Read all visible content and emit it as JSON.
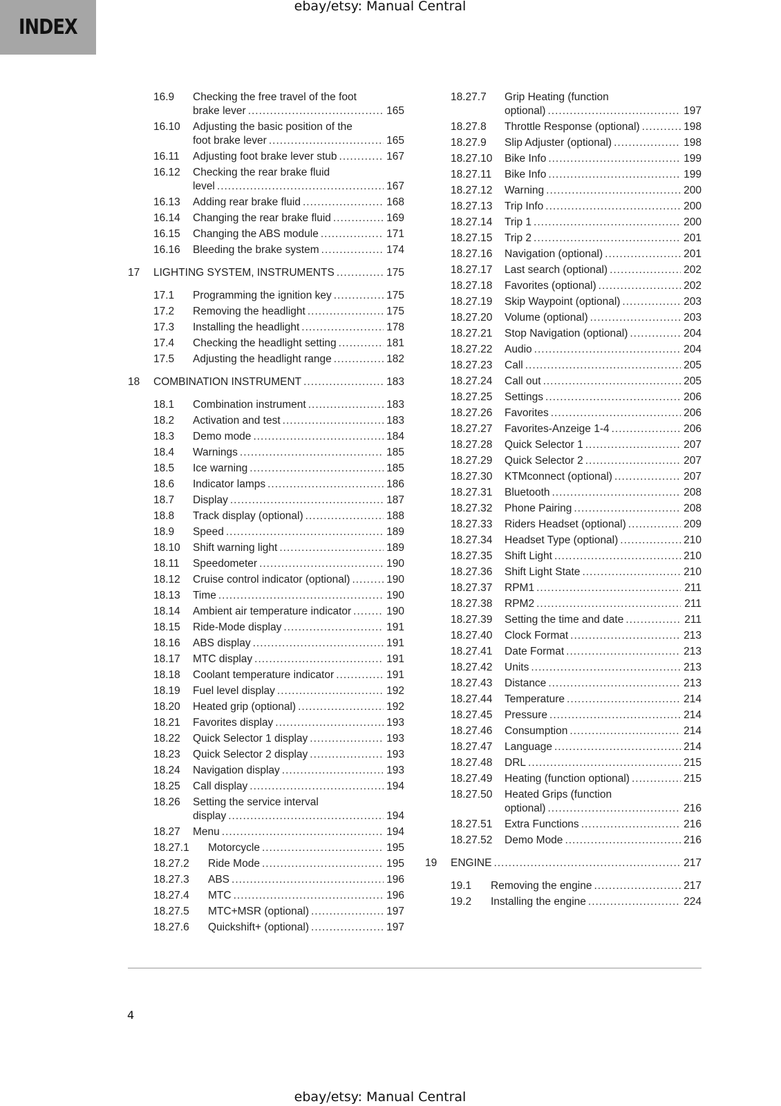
{
  "header": {
    "index_label": "INDEX",
    "watermark_top": "ebay/etsy: Manual Central"
  },
  "footer": {
    "page_number": "4",
    "watermark_bottom": "ebay/etsy: Manual Central"
  },
  "columns": [
    {
      "entries": [
        {
          "level": "sub",
          "num": "16.9",
          "title": "Checking the free travel of the foot",
          "title_cont": "brake lever",
          "page": "165"
        },
        {
          "level": "sub",
          "num": "16.10",
          "title": "Adjusting the basic position of the",
          "title_cont": "foot brake lever",
          "page": "165"
        },
        {
          "level": "sub",
          "num": "16.11",
          "title": "Adjusting foot brake lever stub",
          "page": "167"
        },
        {
          "level": "sub",
          "num": "16.12",
          "title": "Checking the rear brake fluid",
          "title_cont": "level",
          "page": "167"
        },
        {
          "level": "sub",
          "num": "16.13",
          "title": "Adding rear brake fluid",
          "page": "168"
        },
        {
          "level": "sub",
          "num": "16.14",
          "title": "Changing the rear brake fluid",
          "page": "169"
        },
        {
          "level": "sub",
          "num": "16.15",
          "title": "Changing the ABS module",
          "page": "171"
        },
        {
          "level": "sub",
          "num": "16.16",
          "title": "Bleeding the brake system",
          "page": "174"
        },
        {
          "level": "section",
          "num": "17",
          "title": "LIGHTING SYSTEM, INSTRUMENTS",
          "page": "175"
        },
        {
          "level": "sub",
          "num": "17.1",
          "title": "Programming the ignition key",
          "page": "175"
        },
        {
          "level": "sub",
          "num": "17.2",
          "title": "Removing the headlight",
          "page": "175"
        },
        {
          "level": "sub",
          "num": "17.3",
          "title": "Installing the headlight",
          "page": "178"
        },
        {
          "level": "sub",
          "num": "17.4",
          "title": "Checking the headlight setting",
          "page": "181"
        },
        {
          "level": "sub",
          "num": "17.5",
          "title": "Adjusting the headlight range",
          "page": "182"
        },
        {
          "level": "section",
          "num": "18",
          "title": "COMBINATION INSTRUMENT",
          "page": "183"
        },
        {
          "level": "sub",
          "num": "18.1",
          "title": "Combination instrument",
          "page": "183"
        },
        {
          "level": "sub",
          "num": "18.2",
          "title": "Activation and test",
          "page": "183"
        },
        {
          "level": "sub",
          "num": "18.3",
          "title": "Demo mode",
          "page": "184"
        },
        {
          "level": "sub",
          "num": "18.4",
          "title": "Warnings",
          "page": "185"
        },
        {
          "level": "sub",
          "num": "18.5",
          "title": "Ice warning",
          "page": "185"
        },
        {
          "level": "sub",
          "num": "18.6",
          "title": "Indicator lamps",
          "page": "186"
        },
        {
          "level": "sub",
          "num": "18.7",
          "title": "Display",
          "page": "187"
        },
        {
          "level": "sub",
          "num": "18.8",
          "title": "Track display (optional)",
          "page": "188"
        },
        {
          "level": "sub",
          "num": "18.9",
          "title": "Speed",
          "page": "189"
        },
        {
          "level": "sub",
          "num": "18.10",
          "title": "Shift warning light",
          "page": "189"
        },
        {
          "level": "sub",
          "num": "18.11",
          "title": "Speedometer",
          "page": "190"
        },
        {
          "level": "sub",
          "num": "18.12",
          "title": "Cruise control indicator (optional)",
          "page": "190"
        },
        {
          "level": "sub",
          "num": "18.13",
          "title": "Time",
          "page": "190"
        },
        {
          "level": "sub",
          "num": "18.14",
          "title": "Ambient air temperature indicator",
          "page": "190"
        },
        {
          "level": "sub",
          "num": "18.15",
          "title": "Ride-Mode display",
          "page": "191"
        },
        {
          "level": "sub",
          "num": "18.16",
          "title": "ABS display",
          "page": "191"
        },
        {
          "level": "sub",
          "num": "18.17",
          "title": "MTC display",
          "page": "191"
        },
        {
          "level": "sub",
          "num": "18.18",
          "title": "Coolant temperature indicator",
          "page": "191"
        },
        {
          "level": "sub",
          "num": "18.19",
          "title": "Fuel level display",
          "page": "192"
        },
        {
          "level": "sub",
          "num": "18.20",
          "title": "Heated grip (optional)",
          "page": "192"
        },
        {
          "level": "sub",
          "num": "18.21",
          "title": "Favorites display",
          "page": "193"
        },
        {
          "level": "sub",
          "num": "18.22",
          "title": "Quick Selector 1 display",
          "page": "193"
        },
        {
          "level": "sub",
          "num": "18.23",
          "title": "Quick Selector 2 display",
          "page": "193"
        },
        {
          "level": "sub",
          "num": "18.24",
          "title": "Navigation display",
          "page": "193"
        },
        {
          "level": "sub",
          "num": "18.25",
          "title": "Call display",
          "page": "194"
        },
        {
          "level": "sub",
          "num": "18.26",
          "title": "Setting the service interval",
          "title_cont": "display",
          "page": "194"
        },
        {
          "level": "sub",
          "num": "18.27",
          "title": "Menu",
          "page": "194"
        },
        {
          "level": "subsub",
          "num": "18.27.1",
          "title": "Motorcycle",
          "page": "195"
        },
        {
          "level": "subsub",
          "num": "18.27.2",
          "title": "Ride Mode",
          "page": "195"
        },
        {
          "level": "subsub",
          "num": "18.27.3",
          "title": "ABS",
          "page": "196"
        },
        {
          "level": "subsub",
          "num": "18.27.4",
          "title": "MTC",
          "page": "196"
        },
        {
          "level": "subsub",
          "num": "18.27.5",
          "title": "MTC+MSR (optional)",
          "page": "197"
        },
        {
          "level": "subsub",
          "num": "18.27.6",
          "title": "Quickshift+ (optional)",
          "page": "197"
        }
      ]
    },
    {
      "entries": [
        {
          "level": "sub",
          "num": "18.27.7",
          "title": "Grip Heating (function",
          "title_cont": "optional)",
          "page": "197"
        },
        {
          "level": "sub",
          "num": "18.27.8",
          "title": "Throttle Response (optional)",
          "page": "198"
        },
        {
          "level": "sub",
          "num": "18.27.9",
          "title": "Slip Adjuster (optional)",
          "page": "198"
        },
        {
          "level": "sub",
          "num": "18.27.10",
          "title": "Bike Info",
          "page": "199"
        },
        {
          "level": "sub",
          "num": "18.27.11",
          "title": "Bike Info",
          "page": "199"
        },
        {
          "level": "sub",
          "num": "18.27.12",
          "title": "Warning",
          "page": "200"
        },
        {
          "level": "sub",
          "num": "18.27.13",
          "title": "Trip Info",
          "page": "200"
        },
        {
          "level": "sub",
          "num": "18.27.14",
          "title": "Trip 1",
          "page": "200"
        },
        {
          "level": "sub",
          "num": "18.27.15",
          "title": "Trip 2",
          "page": "201"
        },
        {
          "level": "sub",
          "num": "18.27.16",
          "title": "Navigation (optional)",
          "page": "201"
        },
        {
          "level": "sub",
          "num": "18.27.17",
          "title": "Last search (optional)",
          "page": "202"
        },
        {
          "level": "sub",
          "num": "18.27.18",
          "title": "Favorites (optional)",
          "page": "202"
        },
        {
          "level": "sub",
          "num": "18.27.19",
          "title": "Skip Waypoint (optional)",
          "page": "203"
        },
        {
          "level": "sub",
          "num": "18.27.20",
          "title": "Volume (optional)",
          "page": "203"
        },
        {
          "level": "sub",
          "num": "18.27.21",
          "title": "Stop Navigation (optional)",
          "page": "204"
        },
        {
          "level": "sub",
          "num": "18.27.22",
          "title": "Audio",
          "page": "204"
        },
        {
          "level": "sub",
          "num": "18.27.23",
          "title": "Call",
          "page": "205"
        },
        {
          "level": "sub",
          "num": "18.27.24",
          "title": "Call out",
          "page": "205"
        },
        {
          "level": "sub",
          "num": "18.27.25",
          "title": "Settings",
          "page": "206"
        },
        {
          "level": "sub",
          "num": "18.27.26",
          "title": "Favorites",
          "page": "206"
        },
        {
          "level": "sub",
          "num": "18.27.27",
          "title": "Favorites-Anzeige 1-4",
          "page": "206"
        },
        {
          "level": "sub",
          "num": "18.27.28",
          "title": "Quick Selector 1",
          "page": "207"
        },
        {
          "level": "sub",
          "num": "18.27.29",
          "title": "Quick Selector 2",
          "page": "207"
        },
        {
          "level": "sub",
          "num": "18.27.30",
          "title": "KTMconnect (optional)",
          "page": "207"
        },
        {
          "level": "sub",
          "num": "18.27.31",
          "title": "Bluetooth",
          "page": "208"
        },
        {
          "level": "sub",
          "num": "18.27.32",
          "title": "Phone Pairing",
          "page": "208"
        },
        {
          "level": "sub",
          "num": "18.27.33",
          "title": "Riders Headset (optional)",
          "page": "209"
        },
        {
          "level": "sub",
          "num": "18.27.34",
          "title": "Headset Type (optional)",
          "page": "210"
        },
        {
          "level": "sub",
          "num": "18.27.35",
          "title": "Shift Light",
          "page": "210"
        },
        {
          "level": "sub",
          "num": "18.27.36",
          "title": "Shift Light State",
          "page": "210"
        },
        {
          "level": "sub",
          "num": "18.27.37",
          "title": "RPM1",
          "page": "211"
        },
        {
          "level": "sub",
          "num": "18.27.38",
          "title": "RPM2",
          "page": "211"
        },
        {
          "level": "sub",
          "num": "18.27.39",
          "title": "Setting the time and date",
          "page": "211"
        },
        {
          "level": "sub",
          "num": "18.27.40",
          "title": "Clock Format",
          "page": "213"
        },
        {
          "level": "sub",
          "num": "18.27.41",
          "title": "Date Format",
          "page": "213"
        },
        {
          "level": "sub",
          "num": "18.27.42",
          "title": "Units",
          "page": "213"
        },
        {
          "level": "sub",
          "num": "18.27.43",
          "title": "Distance",
          "page": "213"
        },
        {
          "level": "sub",
          "num": "18.27.44",
          "title": "Temperature",
          "page": "214"
        },
        {
          "level": "sub",
          "num": "18.27.45",
          "title": "Pressure",
          "page": "214"
        },
        {
          "level": "sub",
          "num": "18.27.46",
          "title": "Consumption",
          "page": "214"
        },
        {
          "level": "sub",
          "num": "18.27.47",
          "title": "Language",
          "page": "214"
        },
        {
          "level": "sub",
          "num": "18.27.48",
          "title": "DRL",
          "page": "215"
        },
        {
          "level": "sub",
          "num": "18.27.49",
          "title": "Heating (function optional)",
          "page": "215"
        },
        {
          "level": "sub",
          "num": "18.27.50",
          "title": "Heated Grips (function",
          "title_cont": "optional)",
          "page": "216"
        },
        {
          "level": "sub",
          "num": "18.27.51",
          "title": "Extra Functions",
          "page": "216"
        },
        {
          "level": "sub",
          "num": "18.27.52",
          "title": "Demo Mode",
          "page": "216"
        },
        {
          "level": "section",
          "num": "19",
          "title": "ENGINE",
          "page": "217"
        },
        {
          "level": "sub19",
          "num": "19.1",
          "title": "Removing the engine",
          "page": "217"
        },
        {
          "level": "sub19",
          "num": "19.2",
          "title": "Installing the engine",
          "page": "224"
        }
      ]
    }
  ]
}
